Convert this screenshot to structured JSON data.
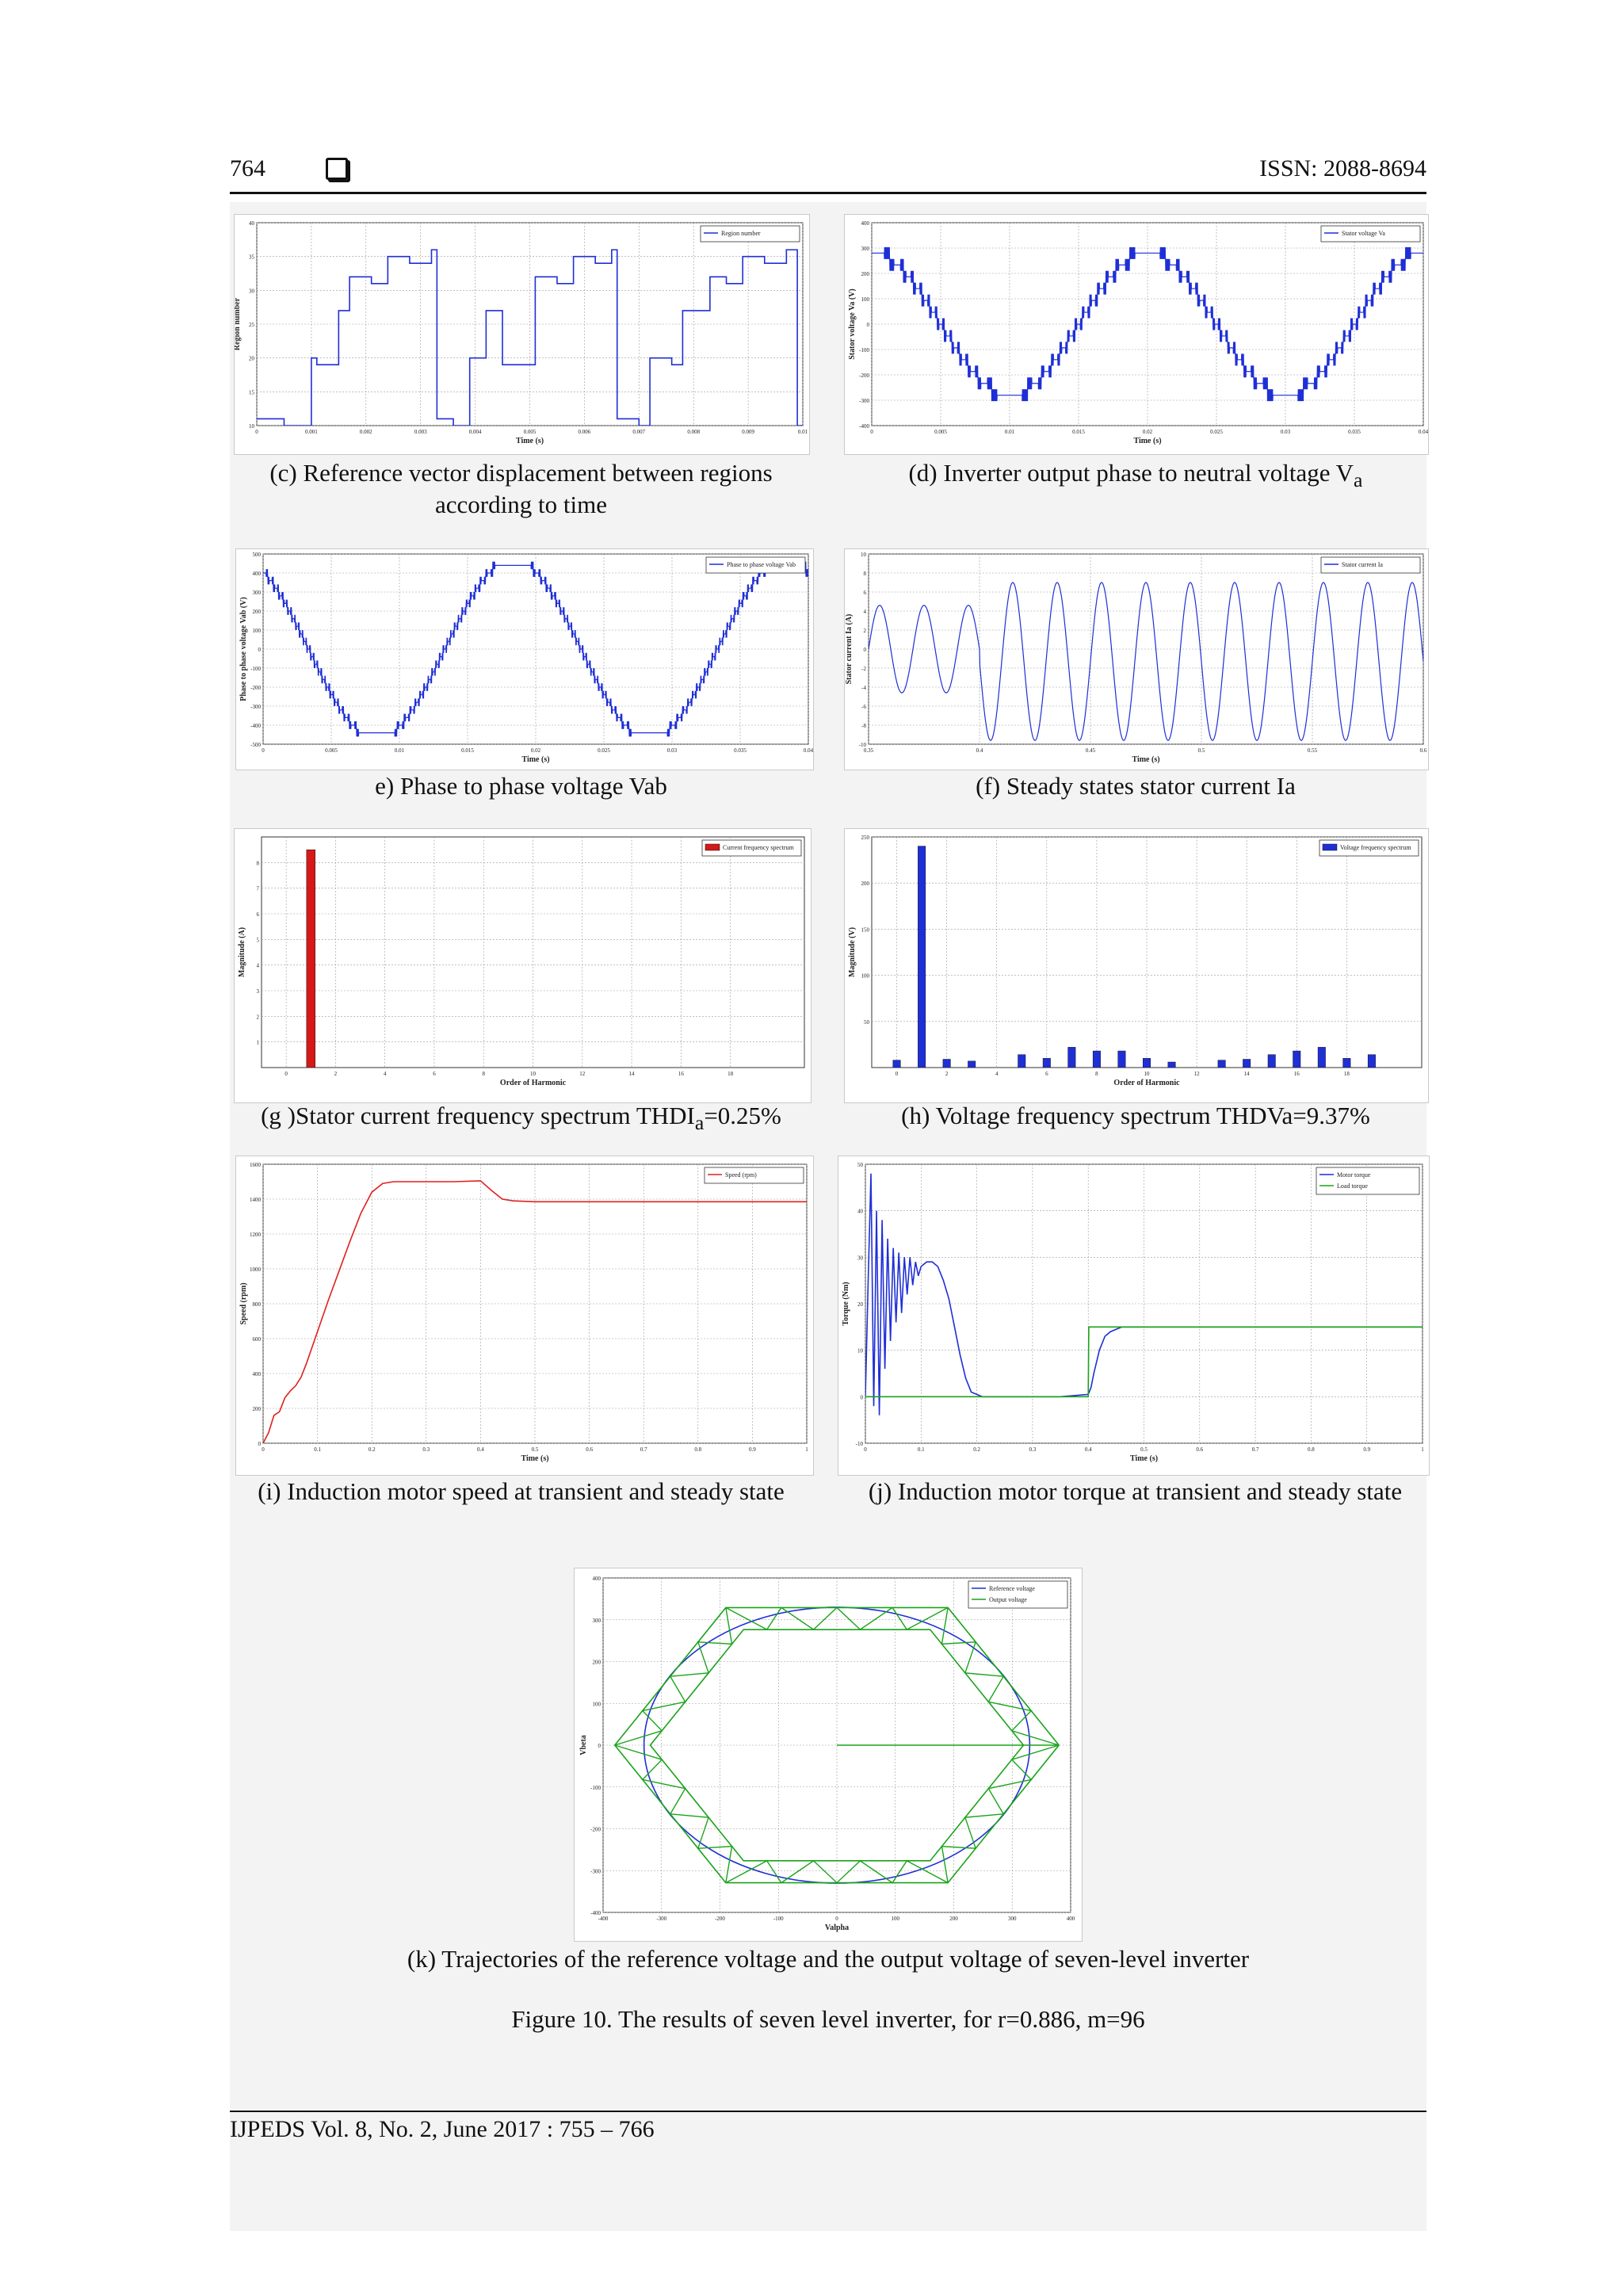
{
  "header": {
    "page_number": "764",
    "issn": "ISSN: 2088-8694"
  },
  "footer": {
    "journal": "IJPEDS  Vol. 8, No. 2, June 2017 :  755 – 766"
  },
  "captions": {
    "c": "(c) Reference vector displacement between regions according to time",
    "d_main": "(d) Inverter output phase to neutral voltage V",
    "d_sub": "a",
    "e": "e) Phase to phase voltage Vab",
    "f": "(f) Steady states stator current Ia",
    "g_main": "(g )Stator current frequency spectrum THDI",
    "g_sub": "a",
    "g_tail": "=0.25%",
    "h": "(h) Voltage frequency spectrum THDVa=9.37%",
    "i": "(i) Induction motor speed at transient and steady state",
    "j": "(j) Induction motor torque at transient and steady state",
    "k": "(k) Trajectories of the reference voltage and the output voltage of seven-level inverter"
  },
  "figure_caption": "Figure 10. The results of seven level inverter, for r=0.886, m=96",
  "chart_data": [
    {
      "id": "c",
      "type": "line",
      "xlabel": "Time (s)",
      "ylabel": "Region number",
      "xlim": [
        0,
        0.01
      ],
      "ylim": [
        10,
        40
      ],
      "xticks": [
        "0",
        "0.001",
        "0.002",
        "0.003",
        "0.004",
        "0.005",
        "0.006",
        "0.007",
        "0.008",
        "0.009",
        "0.01"
      ],
      "yticks": [
        "10",
        "15",
        "20",
        "25",
        "30",
        "35",
        "40"
      ],
      "legend": [
        "Region number"
      ],
      "legend_position": "top-right",
      "series": [
        {
          "name": "Region number",
          "color": "#1f2fd6",
          "x": [
            0,
            0.0005,
            0.0005,
            0.001,
            0.001,
            0.0011,
            0.0011,
            0.0015,
            0.0015,
            0.0017,
            0.0017,
            0.0021,
            0.0021,
            0.0024,
            0.0024,
            0.0028,
            0.0028,
            0.0032,
            0.0032,
            0.0033,
            0.0033,
            0.0036,
            0.0036,
            0.0039,
            0.0039,
            0.0042,
            0.0042,
            0.0045,
            0.0045,
            0.0051,
            0.0051,
            0.0055,
            0.0055,
            0.0058,
            0.0058,
            0.0062,
            0.0062,
            0.0065,
            0.0065,
            0.0066,
            0.0066,
            0.007,
            0.007,
            0.0072,
            0.0072,
            0.0076,
            0.0076,
            0.0078,
            0.0078,
            0.0083,
            0.0083,
            0.0086,
            0.0086,
            0.0089,
            0.0089,
            0.0093,
            0.0093,
            0.0097,
            0.0097,
            0.0099,
            0.0099,
            0.01
          ],
          "y": [
            11,
            11,
            10,
            10,
            20,
            20,
            19,
            19,
            27,
            27,
            32,
            32,
            31,
            31,
            35,
            35,
            34,
            34,
            36,
            36,
            11,
            11,
            10,
            10,
            20,
            20,
            27,
            27,
            19,
            19,
            32,
            32,
            31,
            31,
            35,
            35,
            34,
            34,
            36,
            36,
            11,
            11,
            10,
            10,
            20,
            20,
            19,
            19,
            27,
            27,
            32,
            32,
            31,
            31,
            35,
            35,
            34,
            34,
            36,
            36,
            10,
            10
          ]
        }
      ]
    },
    {
      "id": "d",
      "type": "line",
      "xlabel": "Time (s)",
      "ylabel": "Stator voltage Va (V)",
      "xlim": [
        0,
        0.04
      ],
      "ylim": [
        -400,
        400
      ],
      "xticks": [
        "0",
        "0.005",
        "0.01",
        "0.015",
        "0.02",
        "0.025",
        "0.03",
        "0.035",
        "0.04"
      ],
      "yticks": [
        "-400",
        "-300",
        "-200",
        "-100",
        "0",
        "100",
        "200",
        "300",
        "400"
      ],
      "legend": [
        "Stator voltage Va"
      ],
      "legend_position": "top-right",
      "series": [
        {
          "name": "Stator voltage Va",
          "color": "#1f2fd6",
          "kind": "stepped-sine",
          "amplitude": 280,
          "frequency": 50,
          "phase_deg": 90,
          "levels": 7,
          "step": 46.7
        }
      ]
    },
    {
      "id": "e",
      "type": "line",
      "xlabel": "Time (s)",
      "ylabel": "Phase to phase voltage Vab (V)",
      "xlim": [
        0,
        0.04
      ],
      "ylim": [
        -500,
        500
      ],
      "xticks": [
        "0",
        "0.005",
        "0.01",
        "0.015",
        "0.02",
        "0.025",
        "0.03",
        "0.035",
        "0.04"
      ],
      "yticks": [
        "-500",
        "-400",
        "-300",
        "-200",
        "-100",
        "0",
        "100",
        "200",
        "300",
        "400",
        "500"
      ],
      "legend": [
        "Phase to phase voltage Vab"
      ],
      "legend_position": "top-right",
      "series": [
        {
          "name": "Phase to phase voltage Vab",
          "color": "#1f2fd6",
          "kind": "stepped-sine",
          "amplitude": 470,
          "frequency": 50,
          "phase_deg": 120,
          "clip": 445,
          "levels": 13,
          "step": 40
        }
      ]
    },
    {
      "id": "f",
      "type": "line",
      "xlabel": "Time (s)",
      "ylabel": "Stator current Ia (A)",
      "xlim": [
        0.35,
        0.6
      ],
      "ylim": [
        -10,
        10
      ],
      "xticks": [
        "0.35",
        "0.4",
        "0.45",
        "0.5",
        "0.55",
        "0.6"
      ],
      "yticks": [
        "-10",
        "-8",
        "-6",
        "-4",
        "-2",
        "0",
        "2",
        "4",
        "6",
        "8",
        "10"
      ],
      "legend": [
        "Stator current Ia"
      ],
      "legend_position": "top-right",
      "series": [
        {
          "name": "Stator current Ia",
          "color": "#1f2fd6",
          "kind": "sine",
          "frequency": 50,
          "amplitude_before": 4.6,
          "offset_before": 0,
          "switch_time": 0.4,
          "amplitude_after": 8.3,
          "offset_after": -1.3
        }
      ]
    },
    {
      "id": "g",
      "type": "bar",
      "xlabel": "Order of Harmonic",
      "ylabel": "Magnitude (A)",
      "xlim": [
        -1,
        21
      ],
      "ylim": [
        0,
        9
      ],
      "xticks": [
        "0",
        "2",
        "4",
        "6",
        "8",
        "10",
        "12",
        "14",
        "16",
        "18"
      ],
      "yticks": [
        "1",
        "2",
        "3",
        "4",
        "5",
        "6",
        "7",
        "8"
      ],
      "legend": [
        "Current frequency spectrum"
      ],
      "legend_position": "top-right",
      "series": [
        {
          "name": "Current frequency spectrum",
          "color": "#d61818",
          "x": [
            1
          ],
          "values": [
            8.5
          ]
        }
      ]
    },
    {
      "id": "h",
      "type": "bar",
      "xlabel": "Order of Harmonic",
      "ylabel": "Magnitude (V)",
      "xlim": [
        -1,
        21
      ],
      "ylim": [
        0,
        250
      ],
      "xticks": [
        "0",
        "2",
        "4",
        "6",
        "8",
        "10",
        "12",
        "14",
        "16",
        "18"
      ],
      "yticks": [
        "50",
        "100",
        "150",
        "200",
        "250"
      ],
      "legend": [
        "Voltage frequency spectrum"
      ],
      "legend_position": "top-right",
      "series": [
        {
          "name": "Voltage frequency spectrum",
          "color": "#1f2fd6",
          "x": [
            0,
            1,
            2,
            3,
            5,
            6,
            7,
            8,
            9,
            10,
            11,
            13,
            14,
            15,
            16,
            17,
            18,
            19
          ],
          "values": [
            8,
            240,
            9,
            7,
            14,
            10,
            22,
            18,
            18,
            10,
            6,
            8,
            9,
            14,
            18,
            22,
            10,
            14
          ]
        }
      ]
    },
    {
      "id": "i",
      "type": "line",
      "xlabel": "Time (s)",
      "ylabel": "Speed (rpm)",
      "xlim": [
        0,
        1
      ],
      "ylim": [
        0,
        1600
      ],
      "xticks": [
        "0",
        "0.1",
        "0.2",
        "0.3",
        "0.4",
        "0.5",
        "0.6",
        "0.7",
        "0.8",
        "0.9",
        "1"
      ],
      "yticks": [
        "0",
        "200",
        "400",
        "600",
        "800",
        "1000",
        "1200",
        "1400",
        "1600"
      ],
      "legend": [
        "Speed (rpm)"
      ],
      "legend_position": "top-right",
      "series": [
        {
          "name": "Speed (rpm)",
          "color": "#e02020",
          "x": [
            0,
            0.01,
            0.02,
            0.03,
            0.04,
            0.05,
            0.06,
            0.07,
            0.08,
            0.1,
            0.12,
            0.14,
            0.16,
            0.18,
            0.2,
            0.22,
            0.24,
            0.3,
            0.35,
            0.4,
            0.42,
            0.44,
            0.46,
            0.5,
            0.6,
            0.8,
            1
          ],
          "y": [
            0,
            60,
            160,
            180,
            260,
            300,
            330,
            380,
            460,
            640,
            820,
            990,
            1160,
            1320,
            1440,
            1490,
            1500,
            1500,
            1500,
            1505,
            1450,
            1400,
            1390,
            1385,
            1385,
            1385,
            1385
          ]
        }
      ]
    },
    {
      "id": "j",
      "type": "line",
      "xlabel": "Time (s)",
      "ylabel": "Torque (Nm)",
      "xlim": [
        0,
        1
      ],
      "ylim": [
        -10,
        50
      ],
      "xticks": [
        "0",
        "0.1",
        "0.2",
        "0.3",
        "0.4",
        "0.5",
        "0.6",
        "0.7",
        "0.8",
        "0.9",
        "1"
      ],
      "yticks": [
        "-10",
        "0",
        "10",
        "20",
        "30",
        "40",
        "50"
      ],
      "legend": [
        "Motor torque",
        "Load torque"
      ],
      "legend_position": "top-right",
      "series": [
        {
          "name": "Motor torque",
          "color": "#1f2fd6",
          "x": [
            0,
            0.005,
            0.01,
            0.015,
            0.02,
            0.025,
            0.03,
            0.035,
            0.04,
            0.045,
            0.05,
            0.055,
            0.06,
            0.065,
            0.07,
            0.075,
            0.08,
            0.085,
            0.09,
            0.095,
            0.1,
            0.11,
            0.12,
            0.13,
            0.14,
            0.15,
            0.16,
            0.17,
            0.18,
            0.19,
            0.2,
            0.21,
            0.22,
            0.24,
            0.26,
            0.3,
            0.35,
            0.4,
            0.405,
            0.41,
            0.42,
            0.43,
            0.44,
            0.46,
            0.5,
            0.6,
            1
          ],
          "y": [
            0,
            25,
            48,
            -2,
            40,
            -4,
            38,
            6,
            34,
            12,
            32,
            16,
            31,
            18,
            30,
            22,
            30,
            24,
            29,
            26,
            28,
            29,
            29,
            28,
            25,
            21,
            15,
            9,
            4,
            1,
            0.5,
            0,
            0,
            0,
            0,
            0,
            0,
            0.5,
            2,
            5,
            10,
            13,
            14,
            15,
            15,
            15,
            15
          ]
        },
        {
          "name": "Load torque",
          "color": "#1aa31a",
          "x": [
            0,
            0.399,
            0.4,
            0.401,
            1
          ],
          "y": [
            0,
            0,
            0,
            15,
            15
          ]
        }
      ]
    },
    {
      "id": "k",
      "type": "line",
      "xlabel": "Valpha",
      "ylabel": "Vbeta",
      "xlim": [
        -400,
        400
      ],
      "ylim": [
        -400,
        400
      ],
      "xticks": [
        "-400",
        "-300",
        "-200",
        "-100",
        "0",
        "100",
        "200",
        "300",
        "400"
      ],
      "yticks": [
        "-400",
        "-300",
        "-200",
        "-100",
        "0",
        "100",
        "200",
        "300",
        "400"
      ],
      "legend": [
        "Reference voltage",
        "Output voltage"
      ],
      "legend_position": "top-right",
      "series": [
        {
          "name": "Reference voltage",
          "color": "#1f2fd6",
          "kind": "circle",
          "radius": 330
        },
        {
          "name": "Output voltage",
          "color": "#1aa31a",
          "kind": "hexagon-lattice",
          "outer_radius": 380,
          "step": 46.7
        }
      ]
    }
  ]
}
